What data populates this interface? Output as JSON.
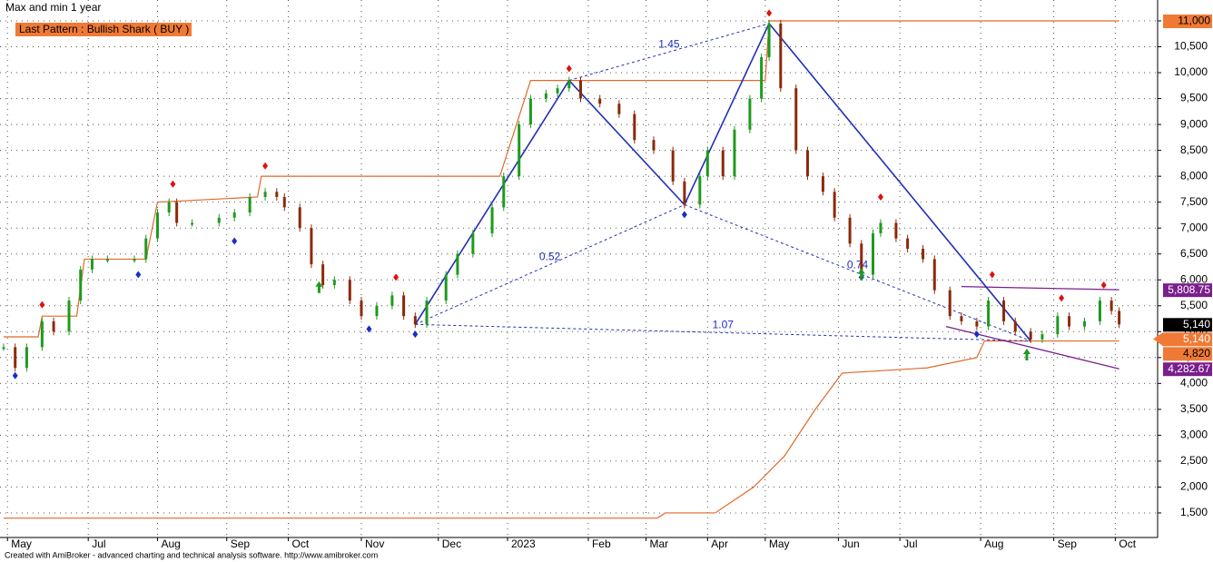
{
  "chart_data": {
    "type": "candlestick",
    "title": "Max and min 1 year",
    "pattern_label": "Last Pattern : Bullish Shark ( BUY )",
    "footer": "Created with AmiBroker - advanced charting and technical analysis software. http://www.amibroker.com",
    "xlim": [
      0,
      300
    ],
    "ylim": [
      1026,
      11403
    ],
    "grid": true,
    "xticks": [
      {
        "value": 1,
        "label": "May"
      },
      {
        "value": 22,
        "label": "Jul"
      },
      {
        "value": 40,
        "label": "Aug"
      },
      {
        "value": 58,
        "label": "Sep"
      },
      {
        "value": 74,
        "label": "Oct"
      },
      {
        "value": 93,
        "label": "Nov"
      },
      {
        "value": 113,
        "label": "Dec"
      },
      {
        "value": 131,
        "label": "2023"
      },
      {
        "value": 152,
        "label": "Feb"
      },
      {
        "value": 167,
        "label": "Mar"
      },
      {
        "value": 183,
        "label": "Apr"
      },
      {
        "value": 198,
        "label": "May"
      },
      {
        "value": 217,
        "label": "Jun"
      },
      {
        "value": 233,
        "label": "Jul"
      },
      {
        "value": 254,
        "label": "Aug"
      },
      {
        "value": 273,
        "label": "Sep"
      },
      {
        "value": 289,
        "label": "Oct"
      }
    ],
    "yticks": [
      {
        "value": 1500,
        "label": "1,500"
      },
      {
        "value": 2000,
        "label": "2,000"
      },
      {
        "value": 2500,
        "label": "2,500"
      },
      {
        "value": 3000,
        "label": "3,000"
      },
      {
        "value": 3500,
        "label": "3,500"
      },
      {
        "value": 4000,
        "label": "4,000"
      },
      {
        "value": 4500,
        "label": "4,500"
      },
      {
        "value": 5000,
        "label": "5,000"
      },
      {
        "value": 5500,
        "label": "5,500"
      },
      {
        "value": 6000,
        "label": "6,000"
      },
      {
        "value": 6500,
        "label": "6,500"
      },
      {
        "value": 7000,
        "label": "7,000"
      },
      {
        "value": 7500,
        "label": "7,500"
      },
      {
        "value": 8000,
        "label": "8,000"
      },
      {
        "value": 8500,
        "label": "8,500"
      },
      {
        "value": 9000,
        "label": "9,000"
      },
      {
        "value": 9500,
        "label": "9,500"
      },
      {
        "value": 10000,
        "label": "10,000"
      },
      {
        "value": 10500,
        "label": "10,500"
      },
      {
        "value": 11000,
        "label": "11,000"
      }
    ],
    "price": {
      "up_color": "#1e9a1e",
      "down_color": "#8b2a0a",
      "x": [
        0,
        3,
        6,
        10,
        13,
        17,
        20,
        23,
        27,
        34,
        37,
        40,
        43,
        45,
        49,
        56,
        60,
        64,
        68,
        71,
        73,
        77,
        80,
        83,
        86,
        90,
        93,
        97,
        101,
        104,
        107,
        110,
        115,
        118,
        122,
        127,
        130,
        134,
        137,
        141,
        144,
        147,
        150,
        155,
        160,
        164,
        169,
        174,
        177,
        181,
        183,
        187,
        190,
        194,
        197,
        199,
        202,
        206,
        209,
        213,
        216,
        220,
        223,
        226,
        228,
        232,
        235,
        239,
        242,
        246,
        249,
        253,
        256,
        260,
        263,
        267,
        270,
        274,
        277,
        281,
        285,
        288,
        290
      ],
      "values": [
        4700,
        4300,
        4700,
        5200,
        5000,
        5600,
        6200,
        6400,
        6400,
        6400,
        6800,
        7300,
        7500,
        7100,
        7100,
        7200,
        7300,
        7600,
        7700,
        7600,
        7400,
        7000,
        6300,
        5900,
        6000,
        5600,
        5300,
        5500,
        5700,
        5300,
        5140,
        5600,
        6100,
        6500,
        6900,
        7400,
        8000,
        9000,
        9500,
        9600,
        9700,
        9850,
        9500,
        9400,
        9200,
        8700,
        8500,
        7900,
        7450,
        8000,
        8500,
        8000,
        8900,
        9500,
        10300,
        10950,
        9700,
        8500,
        8000,
        7700,
        7200,
        6700,
        6100,
        6900,
        7100,
        6800,
        6600,
        6400,
        5800,
        5300,
        5200,
        5100,
        5600,
        5200,
        5000,
        4850,
        4950,
        5300,
        5100,
        5200,
        5600,
        5400,
        5140
      ]
    },
    "max_line": {
      "color": "#e0682a",
      "x": [
        0,
        9,
        10,
        19,
        21,
        37,
        40,
        66,
        67,
        129,
        137,
        198,
        199,
        290
      ],
      "values": [
        4900,
        4900,
        5300,
        5300,
        6400,
        6400,
        7500,
        7600,
        8000,
        8000,
        9850,
        9850,
        11000,
        11000
      ]
    },
    "min_line": {
      "color": "#e0682a",
      "x": [
        0,
        170,
        172,
        185,
        195,
        203,
        211,
        218,
        240,
        253,
        255,
        290
      ],
      "values": [
        1400,
        1400,
        1500,
        1500,
        2000,
        2600,
        3500,
        4200,
        4300,
        4500,
        4820,
        4820
      ]
    },
    "pattern": {
      "color": "#1f2fb8",
      "x": [
        107,
        147,
        177,
        199,
        267
      ],
      "values": [
        5140,
        9850,
        7450,
        10950,
        4820
      ],
      "ratio_labels": [
        "0.52",
        "1.45",
        "0.74",
        "1.07"
      ]
    },
    "trend_lines": [
      {
        "color": "#7a1f8c",
        "x": [
          249,
          290
        ],
        "values": [
          5870,
          5808.75
        ]
      },
      {
        "color": "#7a1f8c",
        "x": [
          245,
          290
        ],
        "values": [
          5100,
          4282.67
        ]
      }
    ],
    "tops": {
      "color": "#e01010",
      "x": [
        10,
        44,
        68,
        102,
        147,
        199,
        228,
        257,
        275,
        286
      ],
      "values": [
        5520,
        7850,
        8200,
        6050,
        10080,
        11150,
        7600,
        6100,
        5650,
        5900
      ]
    },
    "bottoms": {
      "color": "#1a2ec0",
      "x": [
        3,
        35,
        60,
        95,
        107,
        177,
        223,
        253
      ],
      "values": [
        4150,
        6100,
        6750,
        5050,
        4950,
        7260,
        6050,
        4950
      ]
    },
    "buy_arrows": {
      "color": "#1e9a1e",
      "x": [
        82,
        223,
        266
      ],
      "values": [
        5850,
        6100,
        4550
      ]
    },
    "price_labels": [
      {
        "value": 11000,
        "label": "11,000",
        "bg": "#f07a35",
        "fg": "#000000"
      },
      {
        "value": 5808.75,
        "label": "5,808.75",
        "bg": "#7a1f8c",
        "fg": "#ffffff"
      },
      {
        "value": 5140,
        "label": "5,140",
        "bg": "#000000",
        "fg": "#ffffff"
      },
      {
        "value": 5140,
        "label": "5,140",
        "bg": "#f07a35",
        "fg": "#ffffff"
      },
      {
        "value": 4820,
        "label": "4,820",
        "bg": "#f07a35",
        "fg": "#000000"
      },
      {
        "value": 4282.67,
        "label": "4,282.67",
        "bg": "#7a1f8c",
        "fg": "#ffffff"
      }
    ]
  }
}
